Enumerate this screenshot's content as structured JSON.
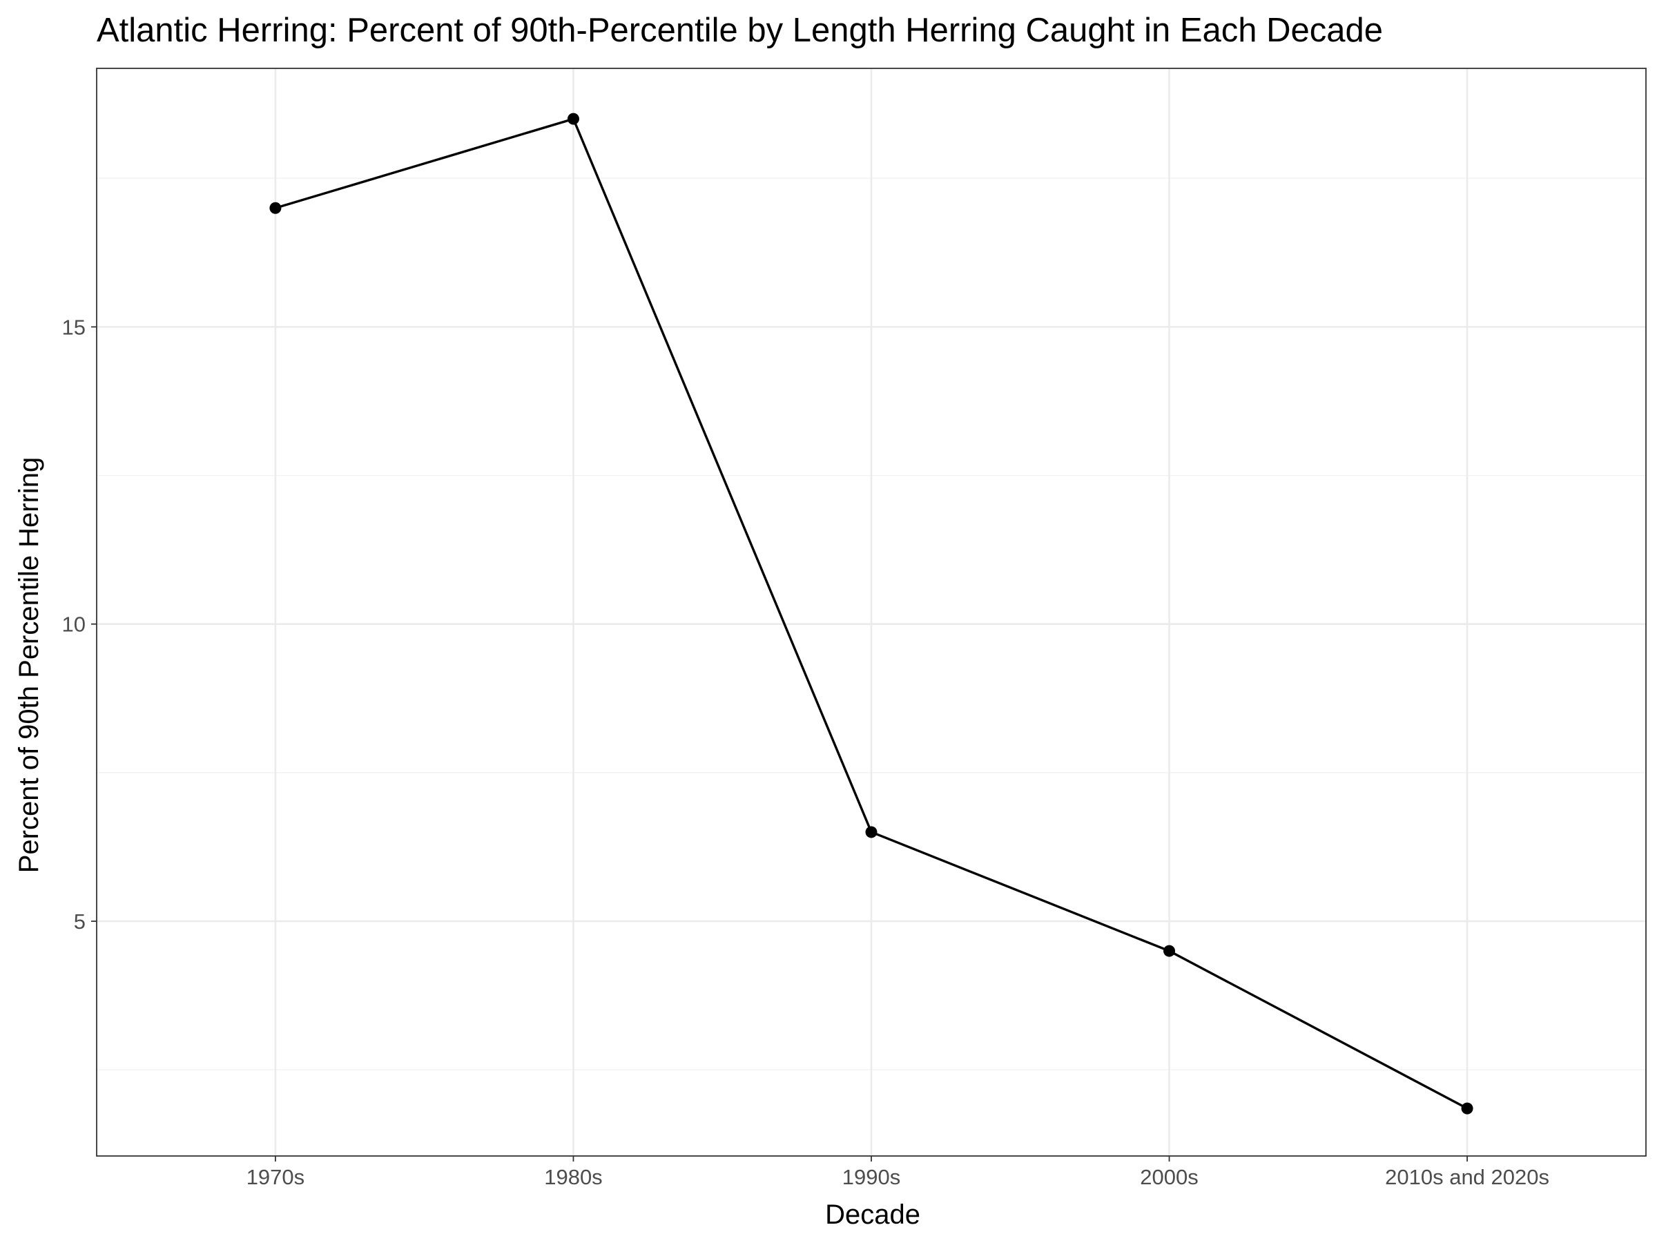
{
  "chart_data": {
    "type": "line",
    "title": "Atlantic Herring: Percent of 90th-Percentile by Length Herring Caught in Each Decade",
    "xlabel": "Decade",
    "ylabel": "Percent of 90th Percentile Herring",
    "categories": [
      "1970s",
      "1980s",
      "1990s",
      "2000s",
      "2010s and 2020s"
    ],
    "series": [
      {
        "values": [
          17.0,
          18.5,
          6.5,
          4.5,
          1.85
        ]
      }
    ],
    "ylim": [
      1.05,
      19.35
    ],
    "y_ticks": [
      5,
      10,
      15
    ],
    "y_tick_labels": [
      "5",
      "10",
      "15"
    ],
    "y_minor_ticks": [
      2.5,
      7.5,
      12.5,
      17.5
    ],
    "grid": true,
    "legend": "none",
    "colors": {
      "line": "#000000",
      "point": "#000000",
      "grid": "#ebebeb",
      "border": "#333333"
    }
  }
}
